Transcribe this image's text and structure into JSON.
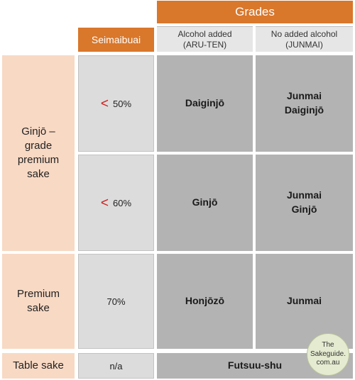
{
  "header": {
    "grades": "Grades",
    "seimaibuai": "Seimaibuai",
    "alcohol_added": [
      "Alcohol added",
      "(ARU-TEN)"
    ],
    "no_added_alcohol": [
      "No added alcohol",
      "(JUNMAI)"
    ]
  },
  "rows": {
    "ginjo_label": [
      "Ginjō –",
      "grade",
      "premium",
      "sake"
    ],
    "premium_label": [
      "Premium",
      "sake"
    ],
    "table_label": "Table sake"
  },
  "polishing": {
    "lt_symbol": "<",
    "p50": "50%",
    "p60": "60%",
    "p70": "70%",
    "na": "n/a"
  },
  "grades": {
    "daiginjo": "Daiginjō",
    "junmai_daiginjo": [
      "Junmai",
      "Daiginjō"
    ],
    "ginjo": "Ginjō",
    "junmai_ginjo": [
      "Junmai",
      "Ginjō"
    ],
    "honjozo": "Honjōzō",
    "junmai": "Junmai",
    "futsuu": "Futsuu-shu"
  },
  "badge": [
    "The",
    "Sakeguide.",
    "com.au"
  ],
  "colors": {
    "orange": "#d9772b",
    "peach": "#f8d9c4",
    "light_gray": "#dcdcdc",
    "mid_gray": "#b3b3b3",
    "lt_red": "#cc1f1f"
  }
}
